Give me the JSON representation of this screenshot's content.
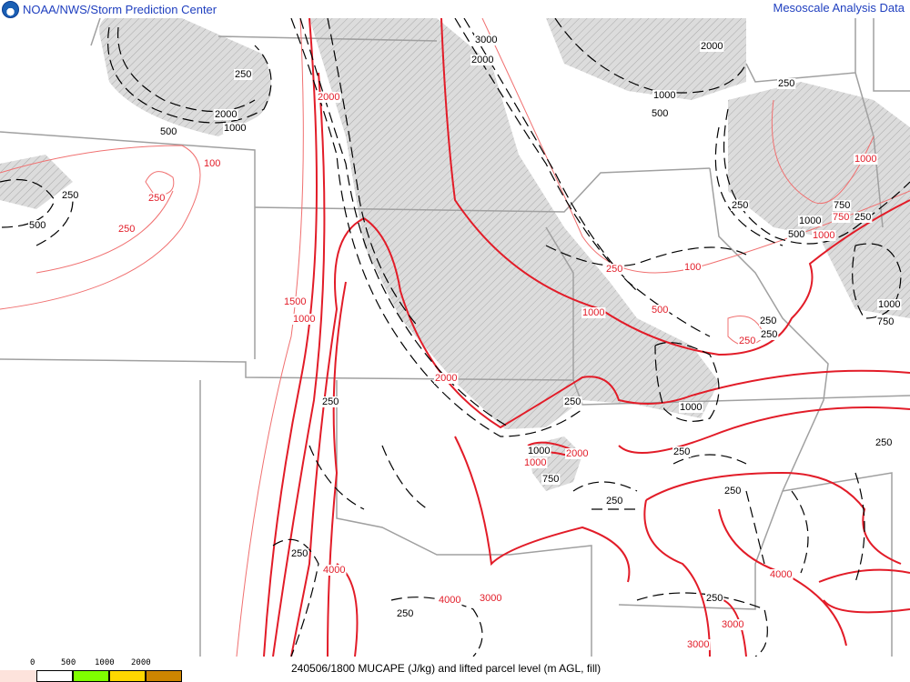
{
  "header": {
    "left_title": "NOAA/NWS/Storm Prediction Center",
    "right_title": "Mesoscale Analysis Data",
    "logo_icon": "noaa-logo-icon"
  },
  "footer": {
    "caption": "240506/1800 MUCAPE (J/kg) and lifted parcel level (m AGL, fill)",
    "legend": {
      "labels": [
        "0",
        "500",
        "1000",
        "2000"
      ],
      "colors": [
        "#fde3dc",
        "#ffffff",
        "#7fff00",
        "#ffd700",
        "#cd8500"
      ]
    }
  },
  "map": {
    "colors": {
      "mucape_contour": "#e8202a",
      "mucape_thin": "#f07070",
      "lpl_contour": "#000000",
      "hatch_fill": "#d3d3d3",
      "borders": "#a0a0a0"
    },
    "mucape_labels": [
      "2000",
      "100",
      "250",
      "250",
      "1500",
      "1000",
      "2000",
      "250",
      "100",
      "1000",
      "500",
      "250",
      "1000",
      "2000",
      "4000",
      "4000",
      "3000",
      "3000",
      "3000",
      "4000",
      "1000",
      "750",
      "1000"
    ],
    "lpl_labels": [
      "3000",
      "2000",
      "2000",
      "250",
      "2000",
      "1000",
      "500",
      "1000",
      "500",
      "250",
      "500",
      "250",
      "250",
      "250",
      "500",
      "1000",
      "750",
      "250",
      "1000",
      "750",
      "1000",
      "250",
      "250",
      "250",
      "750",
      "1000",
      "250",
      "250",
      "250",
      "250",
      "250",
      "250",
      "250"
    ]
  }
}
